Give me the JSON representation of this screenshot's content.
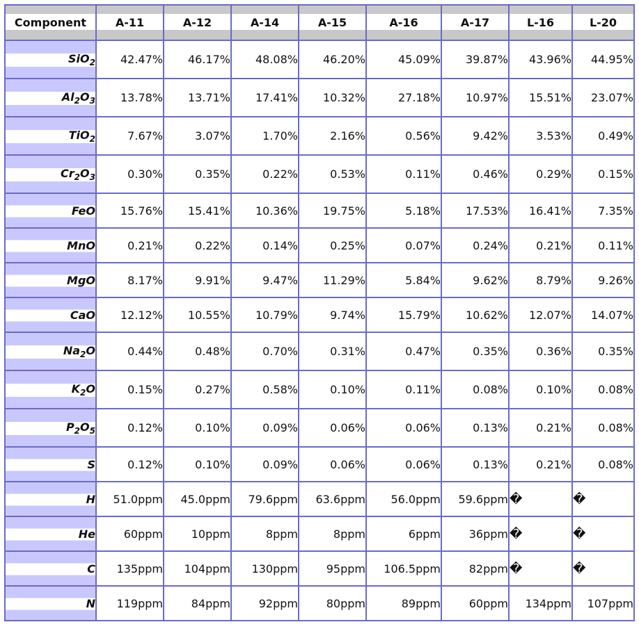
{
  "table": {
    "header_label": "Component",
    "columns": [
      "A-11",
      "A-12",
      "A-14",
      "A-15",
      "A-16",
      "A-17",
      "L-16",
      "L-20"
    ],
    "rows": [
      {
        "label": {
          "a": "SiO",
          "s1": "2",
          "b": "",
          "s2": "",
          "c": ""
        },
        "tall": true,
        "values": [
          "42.47%",
          "46.17%",
          "48.08%",
          "46.20%",
          "45.09%",
          "39.87%",
          "43.96%",
          "44.95%"
        ]
      },
      {
        "label": {
          "a": "Al",
          "s1": "2",
          "b": "O",
          "s2": "3",
          "c": ""
        },
        "tall": true,
        "values": [
          "13.78%",
          "13.71%",
          "17.41%",
          "10.32%",
          "27.18%",
          "10.97%",
          "15.51%",
          "23.07%"
        ]
      },
      {
        "label": {
          "a": "TiO",
          "s1": "2",
          "b": "",
          "s2": "",
          "c": ""
        },
        "tall": true,
        "values": [
          "7.67%",
          "3.07%",
          "1.70%",
          "2.16%",
          "0.56%",
          "9.42%",
          "3.53%",
          "0.49%"
        ]
      },
      {
        "label": {
          "a": "Cr",
          "s1": "2",
          "b": "O",
          "s2": "3",
          "c": ""
        },
        "tall": true,
        "values": [
          "0.30%",
          "0.35%",
          "0.22%",
          "0.53%",
          "0.11%",
          "0.46%",
          "0.29%",
          "0.15%"
        ]
      },
      {
        "label": {
          "a": "FeO",
          "s1": "",
          "b": "",
          "s2": "",
          "c": ""
        },
        "tall": false,
        "values": [
          "15.76%",
          "15.41%",
          "10.36%",
          "19.75%",
          "5.18%",
          "17.53%",
          "16.41%",
          "7.35%"
        ]
      },
      {
        "label": {
          "a": "MnO",
          "s1": "",
          "b": "",
          "s2": "",
          "c": ""
        },
        "tall": false,
        "values": [
          "0.21%",
          "0.22%",
          "0.14%",
          "0.25%",
          "0.07%",
          "0.24%",
          "0.21%",
          "0.11%"
        ]
      },
      {
        "label": {
          "a": "MgO",
          "s1": "",
          "b": "",
          "s2": "",
          "c": ""
        },
        "tall": false,
        "values": [
          "8.17%",
          "9.91%",
          "9.47%",
          "11.29%",
          "5.84%",
          "9.62%",
          "8.79%",
          "9.26%"
        ]
      },
      {
        "label": {
          "a": "CaO",
          "s1": "",
          "b": "",
          "s2": "",
          "c": ""
        },
        "tall": false,
        "values": [
          "12.12%",
          "10.55%",
          "10.79%",
          "9.74%",
          "15.79%",
          "10.62%",
          "12.07%",
          "14.07%"
        ]
      },
      {
        "label": {
          "a": "Na",
          "s1": "2",
          "b": "O",
          "s2": "",
          "c": ""
        },
        "tall": true,
        "values": [
          "0.44%",
          "0.48%",
          "0.70%",
          "0.31%",
          "0.47%",
          "0.35%",
          "0.36%",
          "0.35%"
        ]
      },
      {
        "label": {
          "a": "K",
          "s1": "2",
          "b": "O",
          "s2": "",
          "c": ""
        },
        "tall": true,
        "values": [
          "0.15%",
          "0.27%",
          "0.58%",
          "0.10%",
          "0.11%",
          "0.08%",
          "0.10%",
          "0.08%"
        ]
      },
      {
        "label": {
          "a": "P",
          "s1": "2",
          "b": "O",
          "s2": "5",
          "c": ""
        },
        "tall": true,
        "values": [
          "0.12%",
          "0.10%",
          "0.09%",
          "0.06%",
          "0.06%",
          "0.13%",
          "0.21%",
          "0.08%"
        ]
      },
      {
        "label": {
          "a": "S",
          "s1": "",
          "b": "",
          "s2": "",
          "c": ""
        },
        "tall": false,
        "values": [
          "0.12%",
          "0.10%",
          "0.09%",
          "0.06%",
          "0.06%",
          "0.13%",
          "0.21%",
          "0.08%"
        ]
      },
      {
        "label": {
          "a": "H",
          "s1": "",
          "b": "",
          "s2": "",
          "c": ""
        },
        "tall": false,
        "values": [
          "51.0ppm",
          "45.0ppm",
          "79.6ppm",
          "63.6ppm",
          "56.0ppm",
          "59.6ppm",
          "�",
          "�"
        ]
      },
      {
        "label": {
          "a": "He",
          "s1": "",
          "b": "",
          "s2": "",
          "c": ""
        },
        "tall": false,
        "values": [
          "60ppm",
          "10ppm",
          "8ppm",
          "8ppm",
          "6ppm",
          "36ppm",
          "�",
          "�"
        ]
      },
      {
        "label": {
          "a": "C",
          "s1": "",
          "b": "",
          "s2": "",
          "c": ""
        },
        "tall": false,
        "values": [
          "135ppm",
          "104ppm",
          "130ppm",
          "95ppm",
          "106.5ppm",
          "82ppm",
          "�",
          "�"
        ]
      },
      {
        "label": {
          "a": "N",
          "s1": "",
          "b": "",
          "s2": "",
          "c": ""
        },
        "tall": false,
        "values": [
          "119ppm",
          "84ppm",
          "92ppm",
          "80ppm",
          "89ppm",
          "60ppm",
          "134ppm",
          "107ppm"
        ]
      }
    ],
    "colors": {
      "border": "#6a6ac8",
      "header_band": "#c8c8c8",
      "label_band": "#c8c8ff"
    }
  }
}
